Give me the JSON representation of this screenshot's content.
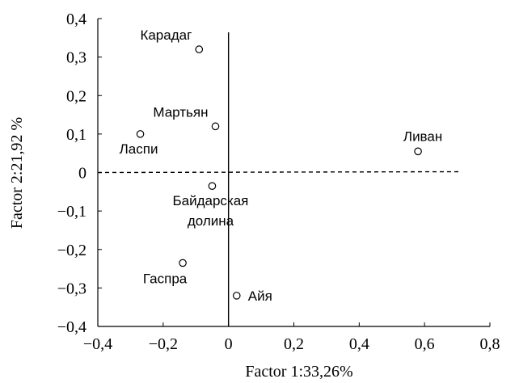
{
  "chart_data": {
    "type": "scatter",
    "xlabel": "Factor 1:33,26%",
    "ylabel": "Factor 2:21,92 %",
    "xlim": [
      -0.4,
      0.8
    ],
    "ylim": [
      -0.4,
      0.4
    ],
    "x_ticks": [
      -0.4,
      -0.2,
      0,
      0.2,
      0.4,
      0.6,
      0.8
    ],
    "x_tick_labels": [
      "−0,4",
      "−0,2",
      "0",
      "0,2",
      "0,4",
      "0,6",
      "0,8"
    ],
    "y_ticks": [
      0.4,
      0.3,
      0.2,
      0.1,
      0,
      -0.1,
      -0.2,
      -0.3,
      -0.4
    ],
    "y_tick_labels": [
      "0,4",
      "0,3",
      "0,2",
      "0,1",
      "0",
      "−0,1",
      "−0,2",
      "−0,3",
      "−0,4"
    ],
    "grid": false,
    "points": [
      {
        "label": [
          "Карадаг"
        ],
        "x": -0.09,
        "y": 0.32,
        "label_pos": "upper-left"
      },
      {
        "label": [
          "Мартьян"
        ],
        "x": -0.04,
        "y": 0.12,
        "label_pos": "upper-left"
      },
      {
        "label": [
          "Ласпи"
        ],
        "x": -0.27,
        "y": 0.1,
        "label_pos": "below"
      },
      {
        "label": [
          "Ливан"
        ],
        "x": 0.58,
        "y": 0.055,
        "label_pos": "above"
      },
      {
        "label": [
          "Байдарская",
          "долина"
        ],
        "x": -0.05,
        "y": -0.035,
        "label_pos": "below"
      },
      {
        "label": [
          "Гаспра"
        ],
        "x": -0.14,
        "y": -0.235,
        "label_pos": "below-left"
      },
      {
        "label": [
          "Айя"
        ],
        "x": 0.025,
        "y": -0.32,
        "label_pos": "right"
      }
    ],
    "reference_lines": [
      "x = 0 (solid)",
      "y = 0 (dashed)"
    ]
  }
}
